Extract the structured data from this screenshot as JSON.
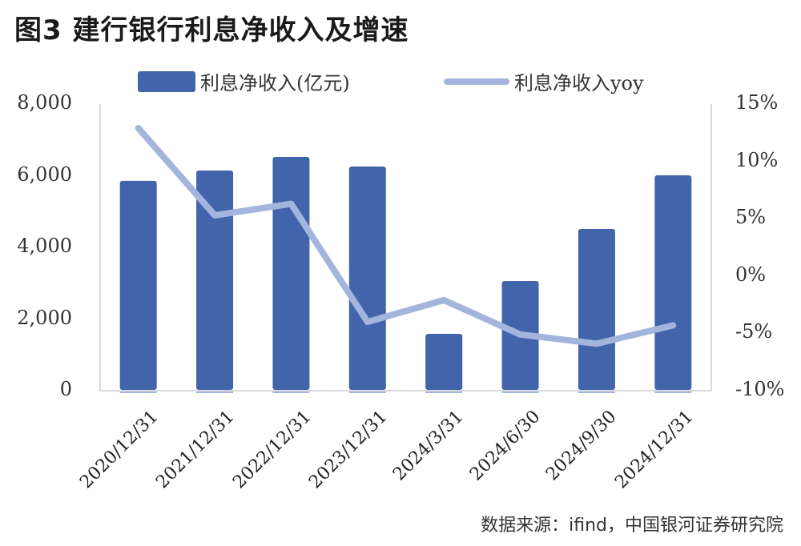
{
  "title": "图3  建行银行利息净收入及增速",
  "legend": {
    "bar_label": "利息净收入(亿元)",
    "line_label": "利息净收入yoy"
  },
  "axes": {
    "left_ticks": [
      "8,000",
      "6,000",
      "4,000",
      "2,000",
      "0"
    ],
    "right_ticks": [
      "15%",
      "10%",
      "5%",
      "0%",
      "-5%",
      "-10%"
    ]
  },
  "source": "数据来源：ifind，中国银河证券研究院",
  "colors": {
    "bar": "#4264ab",
    "line": "#a3b5dc",
    "axis": "#d9d9d9"
  },
  "chart_data": {
    "type": "bar",
    "title": "图3  建行银行利息净收入及增速",
    "categories": [
      "2020/12/31",
      "2021/12/31",
      "2022/12/31",
      "2023/12/31",
      "2024/3/31",
      "2024/6/30",
      "2024/9/30",
      "2024/12/31"
    ],
    "series": [
      {
        "name": "利息净收入(亿元)",
        "type": "bar",
        "axis": "left",
        "values": [
          5858,
          6145,
          6525,
          6257,
          1587,
          3061,
          4514,
          6011
        ]
      },
      {
        "name": "利息净收入yoy",
        "type": "line",
        "axis": "right",
        "unit": "%",
        "values": [
          12.9,
          5.3,
          6.3,
          -4.0,
          -2.1,
          -5.1,
          -5.9,
          -4.3
        ]
      }
    ],
    "xlabel": "",
    "ylabel": "",
    "ylim": [
      0,
      8000
    ],
    "y2lim": [
      -10,
      15
    ],
    "legend_position": "top",
    "grid": false
  }
}
